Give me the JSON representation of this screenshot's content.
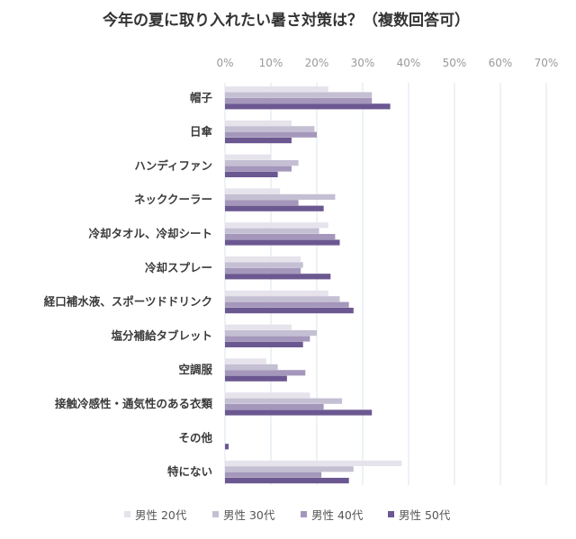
{
  "chart_data": {
    "type": "bar",
    "orientation": "horizontal",
    "title": "今年の夏に取り入れたい暑さ対策は？（複数回答可）",
    "xlabel": "",
    "ylabel": "",
    "xlim": [
      0,
      70
    ],
    "ticks": [
      "0%",
      "10%",
      "20%",
      "30%",
      "40%",
      "50%",
      "60%",
      "70%"
    ],
    "tick_values": [
      0,
      10,
      20,
      30,
      40,
      50,
      60,
      70
    ],
    "grid": true,
    "legend_position": "bottom",
    "categories": [
      "帽子",
      "日傘",
      "ハンディファン",
      "ネッククーラー",
      "冷却タオル、冷却シート",
      "冷却スプレー",
      "経口補水液、スポーツドドリンク",
      "塩分補給タブレット",
      "空調服",
      "接触冷感性・通気性のある衣類",
      "その他",
      "特にない"
    ],
    "series": [
      {
        "name": "男性 20代",
        "color": "#e6e3ec",
        "values": [
          22.5,
          14.5,
          10.0,
          12.0,
          22.5,
          16.5,
          22.5,
          14.5,
          9.0,
          18.5,
          0.0,
          38.5
        ]
      },
      {
        "name": "男性 30代",
        "color": "#c5bfd3",
        "values": [
          32.0,
          19.5,
          16.0,
          24.0,
          20.5,
          17.0,
          25.0,
          20.0,
          11.5,
          25.5,
          0.0,
          28.0
        ]
      },
      {
        "name": "男性 40代",
        "color": "#a497bb",
        "values": [
          32.0,
          20.0,
          14.5,
          16.0,
          24.0,
          16.5,
          27.0,
          18.5,
          17.5,
          21.5,
          0.0,
          21.0
        ]
      },
      {
        "name": "男性 50代",
        "color": "#6b5891",
        "values": [
          36.0,
          14.5,
          11.5,
          21.5,
          25.0,
          23.0,
          28.0,
          17.0,
          13.5,
          32.0,
          0.8,
          27.0
        ]
      }
    ]
  }
}
